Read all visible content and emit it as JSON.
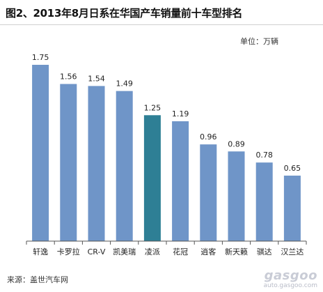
{
  "source": "来源：盖世汽车网",
  "watermark": {
    "logo": "gasgoo",
    "url": "auto.gasgoo.com"
  },
  "colors": {
    "bar": "#6f95c8",
    "bar_highlight": "#2e7f95",
    "axis": "#555555"
  },
  "chart_data": {
    "type": "bar",
    "title": "图2、2013年8月日系在华国产车销量前十车型排名",
    "unit": "单位：万辆",
    "categories": [
      "轩逸",
      "卡罗拉",
      "CR-V",
      "凯美瑞",
      "凌派",
      "花冠",
      "逍客",
      "新天籁",
      "骐达",
      "汉兰达"
    ],
    "values": [
      1.75,
      1.56,
      1.54,
      1.49,
      1.25,
      1.19,
      0.96,
      0.89,
      0.78,
      0.65
    ],
    "value_labels": [
      "1.75",
      "1.56",
      "1.54",
      "1.49",
      "1.25",
      "1.19",
      "0.96",
      "0.89",
      "0.78",
      "0.65"
    ],
    "highlight_category": "凌派",
    "ylim": [
      0,
      1.75
    ],
    "xlabel": "",
    "ylabel": "",
    "grid": false,
    "legend": "none"
  }
}
